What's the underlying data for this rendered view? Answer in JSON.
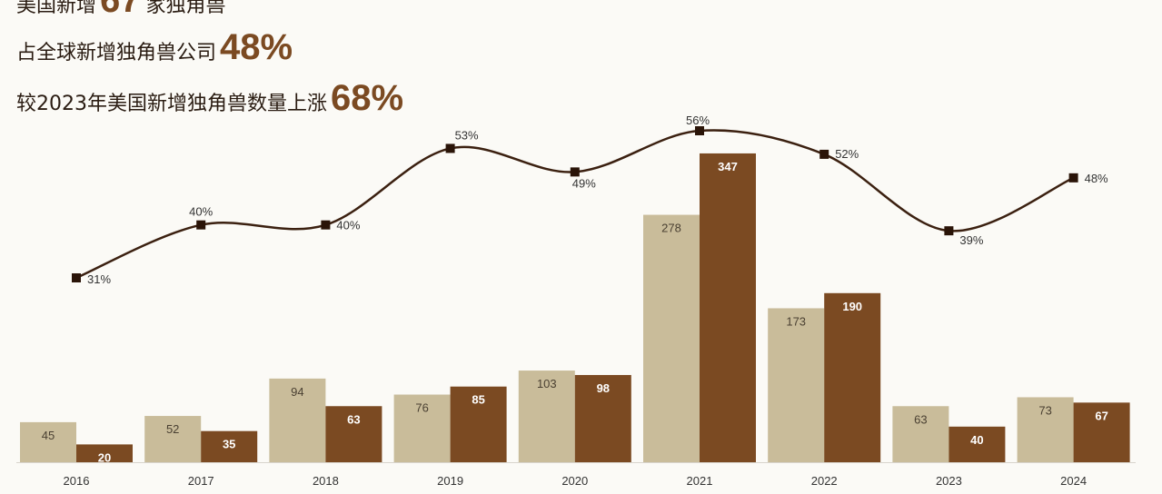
{
  "headlines": [
    {
      "prefix": "美国新增",
      "value": "67",
      "suffix": "家独角兽"
    },
    {
      "prefix": "占全球新增独角兽公司",
      "value": "48%",
      "suffix": ""
    },
    {
      "prefix": "较2023年美国新增独角兽数量上涨",
      "value": "68%",
      "suffix": ""
    }
  ],
  "colors": {
    "series_a": "#c9bc9a",
    "series_b": "#7b4a22",
    "line": "#3b2010",
    "accent": "#7b4a22"
  },
  "chart_data": {
    "type": "bar",
    "categories": [
      "2016",
      "2017",
      "2018",
      "2019",
      "2020",
      "2021",
      "2022",
      "2023",
      "2024"
    ],
    "series": [
      {
        "values": [
          45,
          52,
          94,
          76,
          103,
          278,
          173,
          63,
          73
        ]
      },
      {
        "values": [
          20,
          35,
          63,
          85,
          98,
          347,
          190,
          40,
          67
        ]
      }
    ],
    "line": {
      "values": [
        31,
        40,
        40,
        53,
        49,
        56,
        52,
        39,
        48
      ],
      "labels": [
        "31%",
        "40%",
        "40%",
        "53%",
        "49%",
        "56%",
        "52%",
        "39%",
        "48%"
      ]
    },
    "grid": false,
    "legend": "none"
  }
}
